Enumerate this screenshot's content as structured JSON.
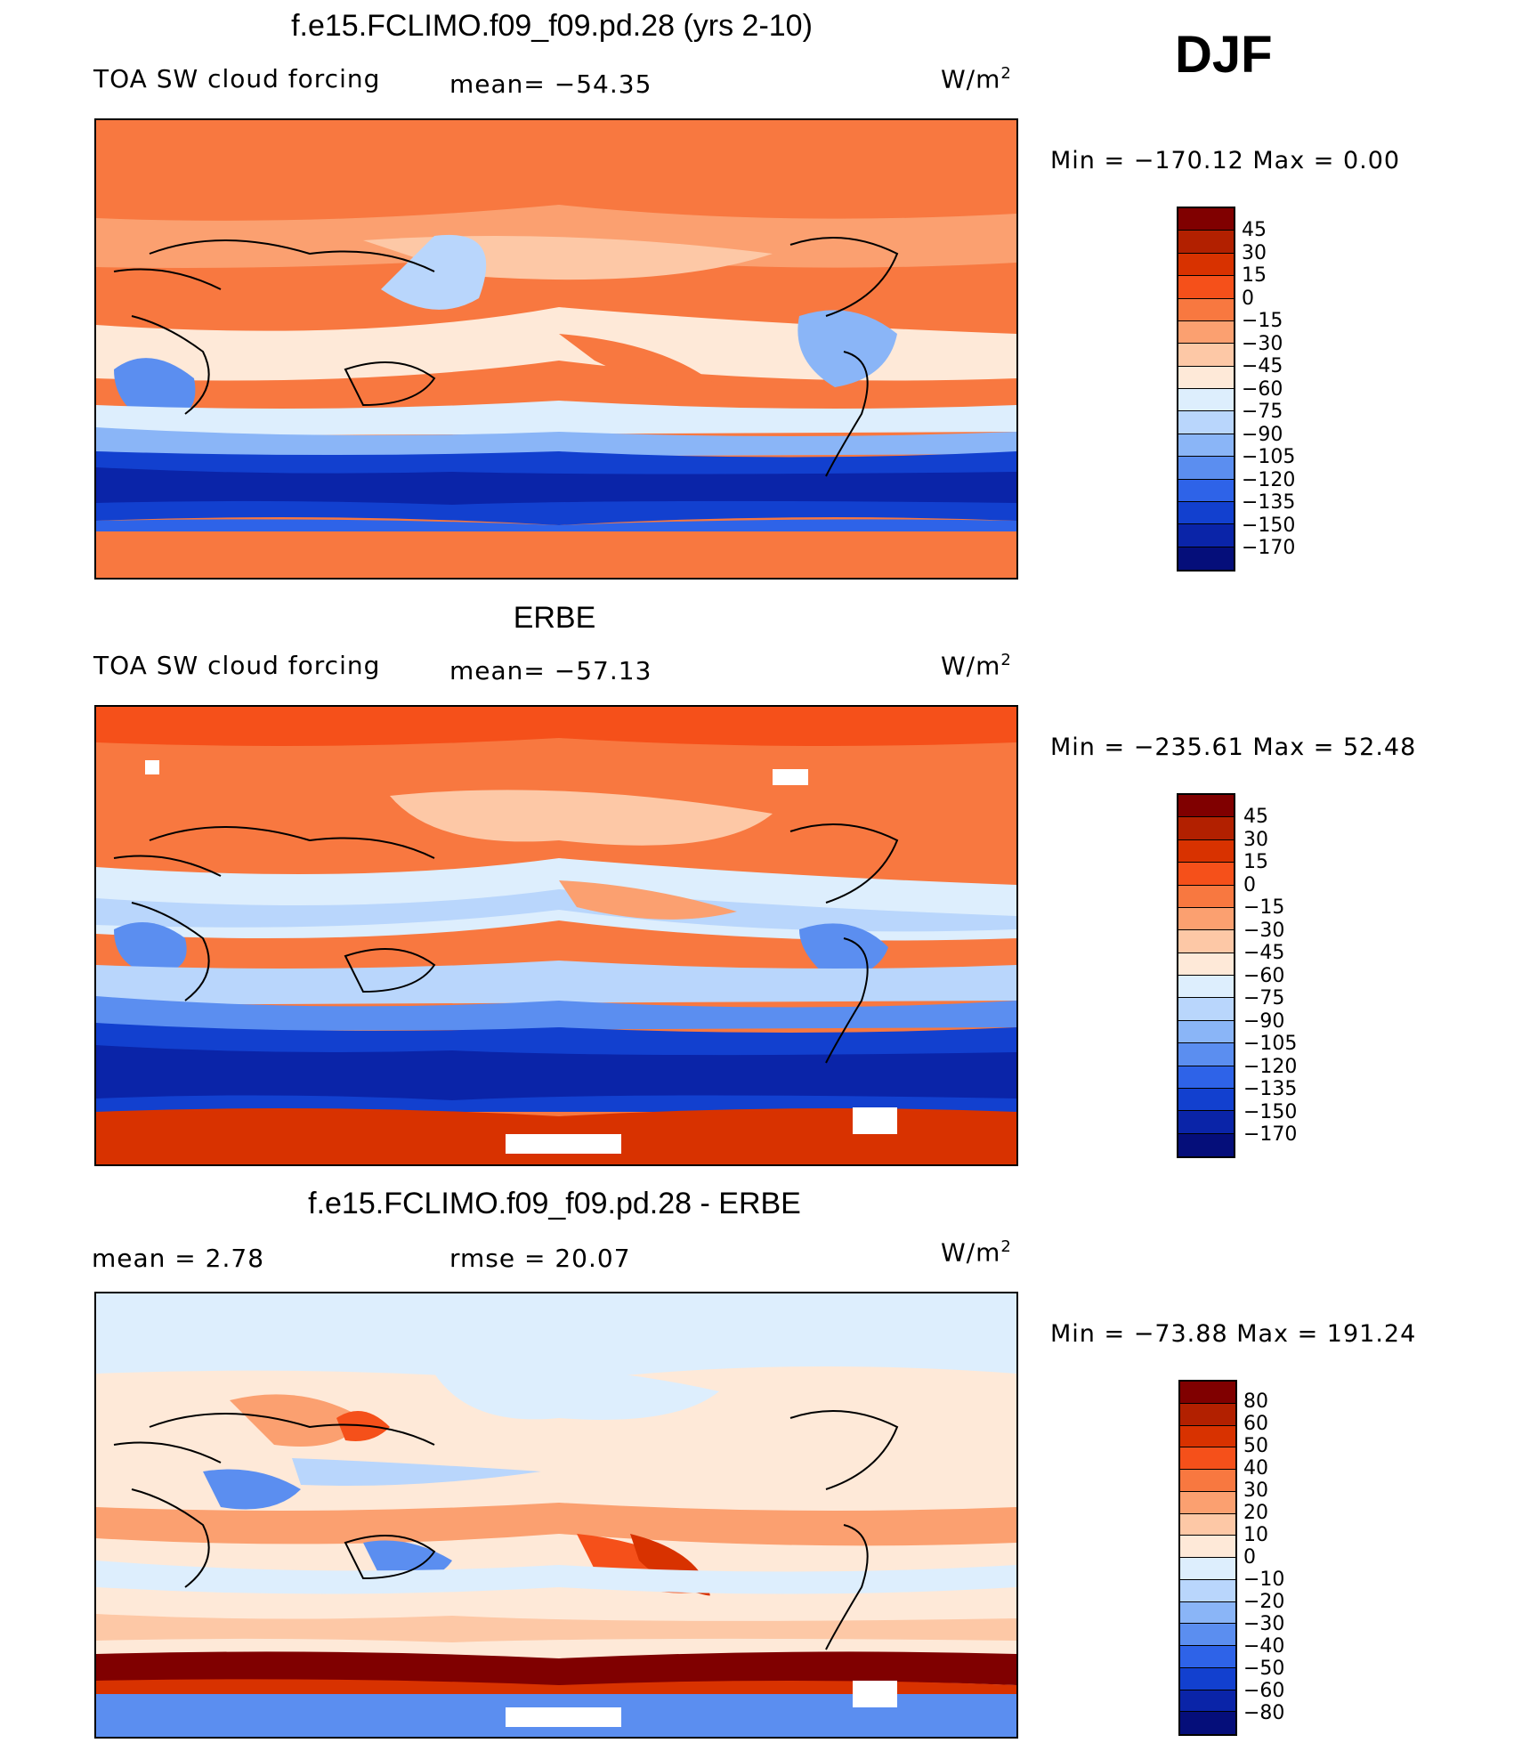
{
  "season": "DJF",
  "units": "W/m",
  "units_sup": "2",
  "panels": [
    {
      "title": "f.e15.FCLIMO.f09_f09.pd.28 (yrs 2-10)",
      "left_label": "TOA SW cloud forcing",
      "mid_label": "mean=  −54.35",
      "min_max": "Min  =  −170.12  Max  =      0.00"
    },
    {
      "title": "ERBE",
      "left_label": "TOA SW cloud forcing",
      "mid_label": "mean=  −57.13",
      "min_max": "Min  =  −235.61  Max  =    52.48"
    },
    {
      "title": "f.e15.FCLIMO.f09_f09.pd.28 - ERBE",
      "left_label": "mean  =      2.78",
      "mid_label": "rmse  =    20.07",
      "min_max": "Min  =  −73.88  Max  =  191.24"
    }
  ],
  "chart_data": [
    {
      "type": "heatmap",
      "title": "f.e15.FCLIMO.f09_f09.pd.28 (yrs 2-10)",
      "variable": "TOA SW cloud forcing",
      "mean": -54.35,
      "min": -170.12,
      "max": 0.0,
      "colorbar_levels": [
        "45",
        "30",
        "15",
        "0",
        "−15",
        "−30",
        "−45",
        "−60",
        "−75",
        "−90",
        "−105",
        "−120",
        "−135",
        "−150",
        "−170"
      ],
      "colors": [
        "#800000",
        "#b22000",
        "#d83200",
        "#f5501a",
        "#f87840",
        "#fba070",
        "#fdc8a6",
        "#fee9d8",
        "#ddeefd",
        "#b9d6fc",
        "#8ab5f7",
        "#5b8ef0",
        "#2e63e8",
        "#1240cf",
        "#0a24a8",
        "#050e7a"
      ]
    },
    {
      "type": "heatmap",
      "title": "ERBE",
      "variable": "TOA SW cloud forcing",
      "mean": -57.13,
      "min": -235.61,
      "max": 52.48,
      "colorbar_levels": [
        "45",
        "30",
        "15",
        "0",
        "−15",
        "−30",
        "−45",
        "−60",
        "−75",
        "−90",
        "−105",
        "−120",
        "−135",
        "−150",
        "−170"
      ],
      "colors": [
        "#800000",
        "#b22000",
        "#d83200",
        "#f5501a",
        "#f87840",
        "#fba070",
        "#fdc8a6",
        "#fee9d8",
        "#ddeefd",
        "#b9d6fc",
        "#8ab5f7",
        "#5b8ef0",
        "#2e63e8",
        "#1240cf",
        "#0a24a8",
        "#050e7a"
      ]
    },
    {
      "type": "heatmap",
      "title": "f.e15.FCLIMO.f09_f09.pd.28 - ERBE",
      "mean": 2.78,
      "rmse": 20.07,
      "min": -73.88,
      "max": 191.24,
      "colorbar_levels": [
        "80",
        "60",
        "50",
        "40",
        "30",
        "20",
        "10",
        "0",
        "−10",
        "−20",
        "−30",
        "−40",
        "−50",
        "−60",
        "−80"
      ],
      "colors": [
        "#800000",
        "#b22000",
        "#d83200",
        "#f5501a",
        "#f87840",
        "#fba070",
        "#fdc8a6",
        "#fee9d8",
        "#ddeefd",
        "#b9d6fc",
        "#8ab5f7",
        "#5b8ef0",
        "#2e63e8",
        "#1240cf",
        "#0a24a8",
        "#050e7a"
      ]
    }
  ]
}
